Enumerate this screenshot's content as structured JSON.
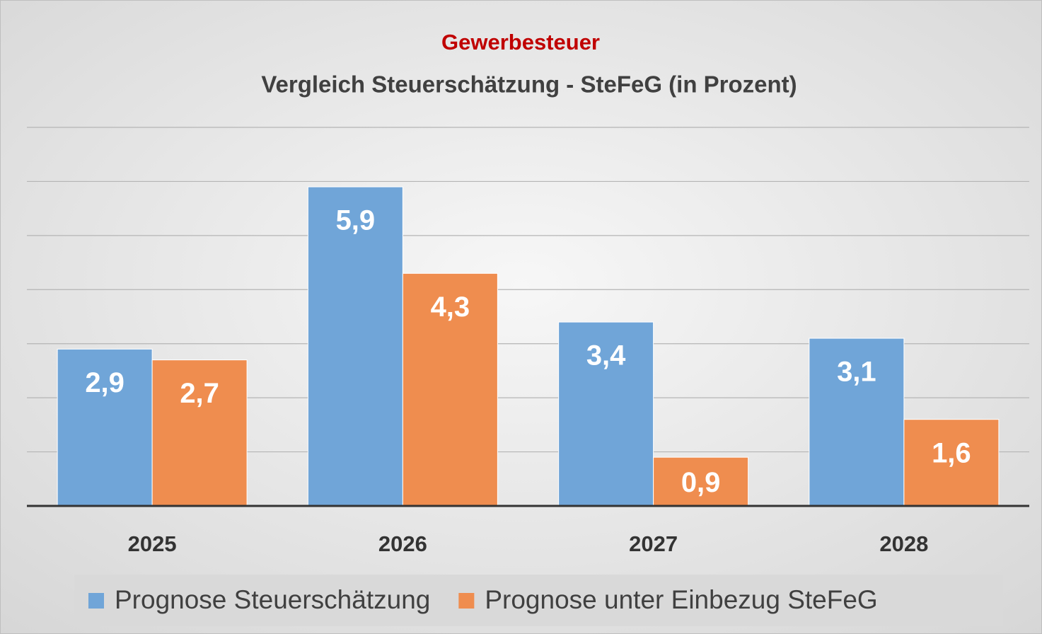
{
  "chart_data": {
    "type": "bar",
    "title": "Gewerbesteuer",
    "subtitle": "Vergleich Steuerschätzung - SteFeG (in Prozent)",
    "categories": [
      "2025",
      "2026",
      "2027",
      "2028"
    ],
    "series": [
      {
        "name": "Prognose Steuerschätzung",
        "color": "#70a5d8",
        "values": [
          2.9,
          5.9,
          3.4,
          3.1
        ],
        "value_labels": [
          "2,9",
          "5,9",
          "3,4",
          "3,1"
        ]
      },
      {
        "name": "Prognose unter Einbezug SteFeG",
        "color": "#ef8d4f",
        "values": [
          2.7,
          4.3,
          0.9,
          1.6
        ],
        "value_labels": [
          "2,7",
          "4,3",
          "0,9",
          "1,6"
        ]
      }
    ],
    "ylim": [
      0,
      7
    ],
    "yticks": [
      0,
      1,
      2,
      3,
      4,
      5,
      6,
      7
    ],
    "grid": true,
    "legend": "bottom"
  }
}
